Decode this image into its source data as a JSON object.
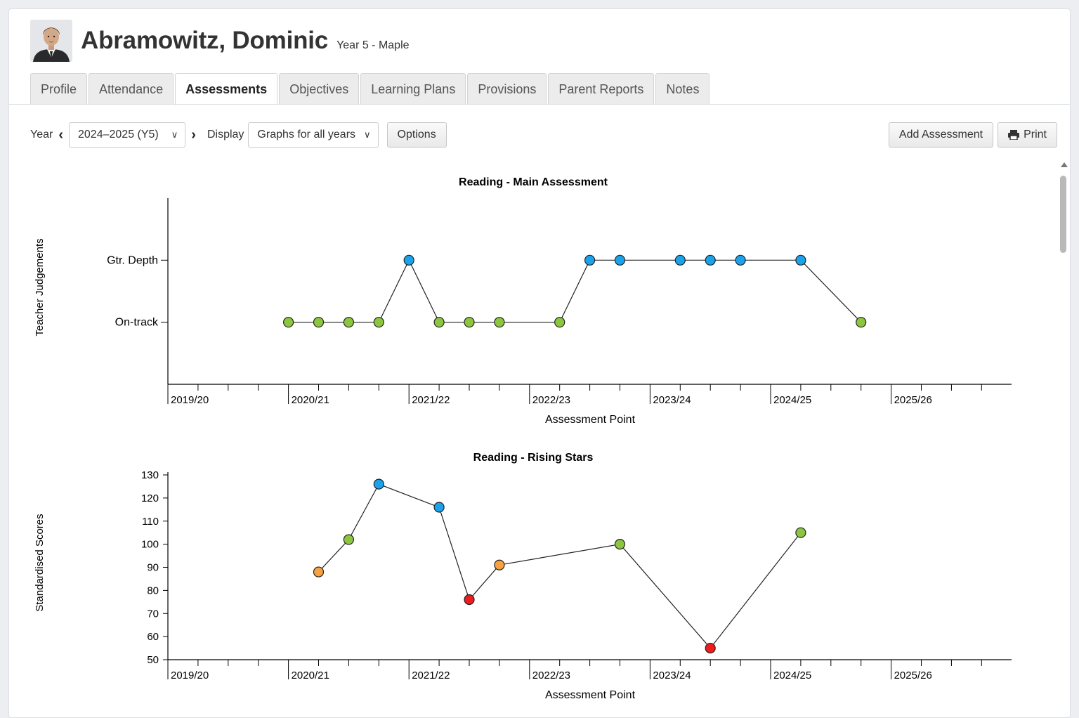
{
  "student": {
    "name": "Abramowitz, Dominic",
    "class": "Year 5 - Maple"
  },
  "tabs": [
    {
      "label": "Profile",
      "active": false
    },
    {
      "label": "Attendance",
      "active": false
    },
    {
      "label": "Assessments",
      "active": true
    },
    {
      "label": "Objectives",
      "active": false
    },
    {
      "label": "Learning Plans",
      "active": false
    },
    {
      "label": "Provisions",
      "active": false
    },
    {
      "label": "Parent Reports",
      "active": false
    },
    {
      "label": "Notes",
      "active": false
    }
  ],
  "toolbar": {
    "year_label": "Year",
    "year_value": "2024–2025 (Y5)",
    "display_label": "Display",
    "display_value": "Graphs for all years",
    "options_label": "Options",
    "add_label": "Add Assessment",
    "print_label": "Print"
  },
  "colors": {
    "green": "#8cc63f",
    "blue": "#1aa3ec",
    "orange": "#f7a23f",
    "red": "#ee1c1c"
  },
  "chart_data": [
    {
      "type": "line",
      "title": "Reading - Main Assessment",
      "xlabel": "Assessment Point",
      "ylabel": "Teacher Judgements",
      "x_ticks": [
        "2019/20",
        "2020/21",
        "2021/22",
        "2022/23",
        "2023/24",
        "2024/25",
        "2025/26"
      ],
      "y_categories": [
        "On-track",
        "Gtr. Depth"
      ],
      "points_per_year": 4,
      "points": [
        {
          "x": 4,
          "y": "On-track",
          "color": "green"
        },
        {
          "x": 5,
          "y": "On-track",
          "color": "green"
        },
        {
          "x": 6,
          "y": "On-track",
          "color": "green"
        },
        {
          "x": 7,
          "y": "On-track",
          "color": "green"
        },
        {
          "x": 8,
          "y": "Gtr. Depth",
          "color": "blue"
        },
        {
          "x": 9,
          "y": "On-track",
          "color": "green"
        },
        {
          "x": 10,
          "y": "On-track",
          "color": "green"
        },
        {
          "x": 11,
          "y": "On-track",
          "color": "green"
        },
        {
          "x": 13,
          "y": "On-track",
          "color": "green"
        },
        {
          "x": 14,
          "y": "Gtr. Depth",
          "color": "blue"
        },
        {
          "x": 15,
          "y": "Gtr. Depth",
          "color": "blue"
        },
        {
          "x": 17,
          "y": "Gtr. Depth",
          "color": "blue"
        },
        {
          "x": 18,
          "y": "Gtr. Depth",
          "color": "blue"
        },
        {
          "x": 19,
          "y": "Gtr. Depth",
          "color": "blue"
        },
        {
          "x": 21,
          "y": "Gtr. Depth",
          "color": "blue"
        },
        {
          "x": 23,
          "y": "On-track",
          "color": "green"
        }
      ]
    },
    {
      "type": "line",
      "title": "Reading - Rising Stars",
      "xlabel": "Assessment Point",
      "ylabel": "Standardised Scores",
      "x_ticks": [
        "2019/20",
        "2020/21",
        "2021/22",
        "2022/23",
        "2023/24",
        "2024/25",
        "2025/26"
      ],
      "y_ticks": [
        50,
        60,
        70,
        80,
        90,
        100,
        110,
        120,
        130
      ],
      "ylim": [
        50,
        130
      ],
      "points_per_year": 4,
      "points": [
        {
          "x": 5,
          "y": 88,
          "color": "orange"
        },
        {
          "x": 6,
          "y": 102,
          "color": "green"
        },
        {
          "x": 7,
          "y": 126,
          "color": "blue"
        },
        {
          "x": 9,
          "y": 116,
          "color": "blue"
        },
        {
          "x": 10,
          "y": 76,
          "color": "red"
        },
        {
          "x": 11,
          "y": 91,
          "color": "orange"
        },
        {
          "x": 15,
          "y": 100,
          "color": "green"
        },
        {
          "x": 18,
          "y": 55,
          "color": "red"
        },
        {
          "x": 21,
          "y": 105,
          "color": "green"
        }
      ]
    }
  ]
}
